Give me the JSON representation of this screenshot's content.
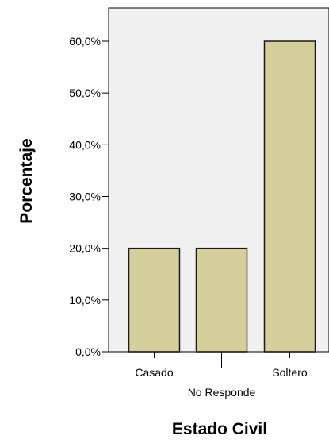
{
  "chart_data": {
    "type": "bar",
    "title": "",
    "xlabel": "Estado Civil",
    "ylabel": "Porcentaje",
    "categories": [
      "Casado",
      "No Responde",
      "Soltero"
    ],
    "values": [
      20.0,
      20.0,
      60.0
    ],
    "ylim": [
      0,
      65
    ],
    "yticks": [
      0,
      10,
      20,
      30,
      40,
      50,
      60
    ],
    "ytick_labels": [
      "0,0%",
      "10,0%",
      "20,0%",
      "30,0%",
      "40,0%",
      "50,0%",
      "60,0%"
    ],
    "grid": false,
    "legend": "none",
    "colors": {
      "bar_fill": "#d4cf9a",
      "bar_stroke": "#1a1a1a",
      "plot_background": "#f0f0f0",
      "axis": "#000000",
      "text": "#000000"
    }
  }
}
